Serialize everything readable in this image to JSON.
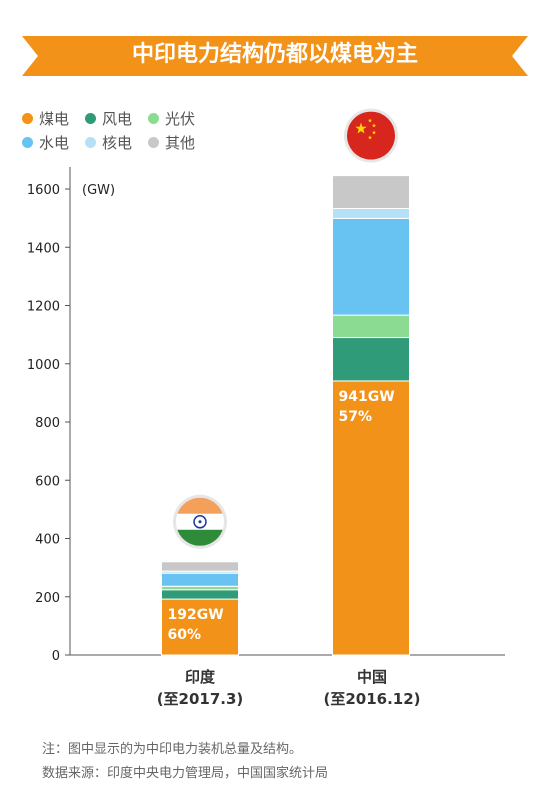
{
  "header": {
    "title": "中印电力结构仍都以煤电为主"
  },
  "colors": {
    "banner": "#f39219",
    "coal": "#f39219",
    "wind": "#2f9b78",
    "solar": "#8cdb93",
    "hydro": "#68c3f2",
    "nuclear": "#b5e1f7",
    "other": "#c8c8c8"
  },
  "chart_data": {
    "type": "bar",
    "stacked": true,
    "title": "中印电力结构仍都以煤电为主",
    "ylabel": "(GW)",
    "ylim": [
      0,
      1600
    ],
    "yticks": [
      0,
      200,
      400,
      600,
      800,
      1000,
      1200,
      1400,
      1600
    ],
    "categories": [
      "印度",
      "中国"
    ],
    "category_dates": [
      "(至2017.3)",
      "(至2016.12)"
    ],
    "legend_position": "top-left",
    "series": [
      {
        "name": "煤电",
        "color_key": "coal",
        "values": [
          192,
          941
        ]
      },
      {
        "name": "风电",
        "color_key": "wind",
        "values": [
          32,
          149
        ]
      },
      {
        "name": "光伏",
        "color_key": "solar",
        "values": [
          12,
          77
        ]
      },
      {
        "name": "水电",
        "color_key": "hydro",
        "values": [
          45,
          332
        ]
      },
      {
        "name": "核电",
        "color_key": "nuclear",
        "values": [
          7,
          34
        ]
      },
      {
        "name": "其他",
        "color_key": "other",
        "values": [
          32,
          113
        ]
      }
    ],
    "annotations": [
      {
        "category": "印度",
        "value_text": "192GW",
        "share_text": "60%"
      },
      {
        "category": "中国",
        "value_text": "941GW",
        "share_text": "57%"
      }
    ],
    "flags": [
      "india-flag-icon",
      "china-flag-icon"
    ]
  },
  "footer": {
    "note": "注：图中显示的为中印电力装机总量及结构。",
    "source": "数据来源：印度中央电力管理局，中国国家统计局"
  }
}
